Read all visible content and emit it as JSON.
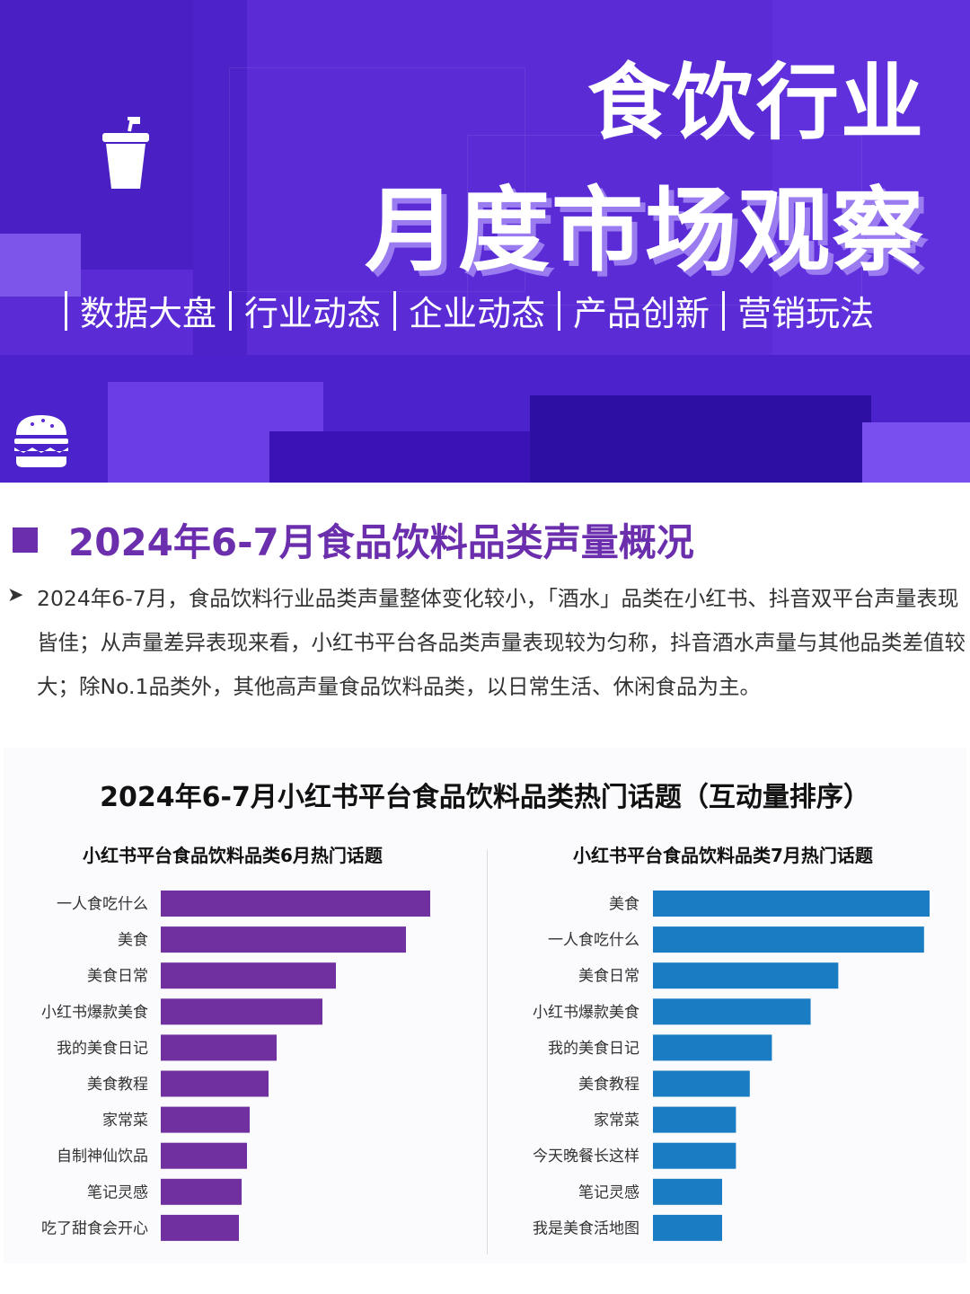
{
  "banner": {
    "title_line1": "食饮行业",
    "title_line2": "月度市场观察",
    "nav": [
      "数据大盘",
      "行业动态",
      "企业动态",
      "产品创新",
      "营销玩法"
    ],
    "icons": [
      "drink-cup-icon",
      "burger-icon"
    ],
    "colors": {
      "background": "#5b2bd6",
      "text": "#ffffff"
    }
  },
  "section": {
    "title": "2024年6-7月食品饮料品类声量概况",
    "summary": "2024年6-7月，食品饮料行业品类声量整体变化较小，「酒水」品类在小红书、抖音双平台声量表现皆佳；从声量差异表现来看，小红书平台各品类声量表现较为匀称，抖音酒水声量与其他品类差值较大；除No.1品类外，其他高声量食品饮料品类，以日常生活、休闲食品为主。",
    "accent_color": "#6b2fae"
  },
  "chart_title": "2024年6-7月小红书平台食品饮料品类热门话题（互动量排序）",
  "chart_data": [
    {
      "type": "bar",
      "orientation": "horizontal",
      "title": "小红书平台食品饮料品类6月热门话题",
      "categories": [
        "一人食吃什么",
        "美食",
        "美食日常",
        "小红书爆款美食",
        "我的美食日记",
        "美食教程",
        "家常菜",
        "自制神仙饮品",
        "笔记灵感",
        "吃了甜食会开心"
      ],
      "values": [
        100,
        91,
        65,
        60,
        43,
        40,
        33,
        32,
        30,
        29
      ],
      "value_unit": "relative",
      "color": "#7030a0",
      "grid": false
    },
    {
      "type": "bar",
      "orientation": "horizontal",
      "title": "小红书平台食品饮料品类7月热门话题",
      "categories": [
        "美食",
        "一人食吃什么",
        "美食日常",
        "小红书爆款美食",
        "我的美食日记",
        "美食教程",
        "家常菜",
        "今天晚餐长这样",
        "笔记灵感",
        "我是美食活地图"
      ],
      "values": [
        100,
        98,
        67,
        57,
        43,
        35,
        30,
        30,
        25,
        25
      ],
      "value_unit": "relative",
      "color": "#1a7dc4",
      "grid": false
    }
  ]
}
